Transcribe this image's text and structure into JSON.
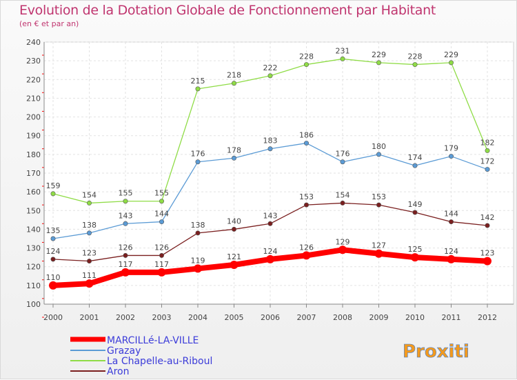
{
  "header": {
    "title": "Evolution de la Dotation Globale de Fonctionnement par Habitant",
    "subtitle": "(en € et par an)"
  },
  "brand": {
    "logo_text": "Proxiti"
  },
  "chart_data": {
    "type": "line",
    "title": "Evolution de la Dotation Globale de Fonctionnement par Habitant",
    "subtitle": "(en € et par an)",
    "x": [
      "2000",
      "2001",
      "2002",
      "2003",
      "2004",
      "2005",
      "2006",
      "2007",
      "2008",
      "2009",
      "2010",
      "2011",
      "2012"
    ],
    "ylim": [
      100,
      240
    ],
    "yticks": [
      100,
      110,
      120,
      130,
      140,
      150,
      160,
      170,
      180,
      190,
      200,
      210,
      220,
      230,
      240
    ],
    "grid": true,
    "legend_position": "bottom-left",
    "series": [
      {
        "name": "MARCILLé-LA-VILLE",
        "color": "#ff0000",
        "values": [
          110,
          111,
          117,
          117,
          119,
          121,
          124,
          126,
          129,
          127,
          125,
          124,
          123
        ]
      },
      {
        "name": "Grazay",
        "color": "#5b9bd5",
        "values": [
          135,
          138,
          143,
          144,
          176,
          178,
          183,
          186,
          176,
          180,
          174,
          179,
          172
        ]
      },
      {
        "name": "La Chapelle-au-Riboul",
        "color": "#8fdc46",
        "values": [
          159,
          154,
          155,
          155,
          215,
          218,
          222,
          228,
          231,
          229,
          228,
          229,
          182
        ]
      },
      {
        "name": "Aron",
        "color": "#7a1f1f",
        "values": [
          124,
          123,
          126,
          126,
          138,
          140,
          143,
          153,
          154,
          153,
          149,
          144,
          142
        ]
      }
    ]
  }
}
